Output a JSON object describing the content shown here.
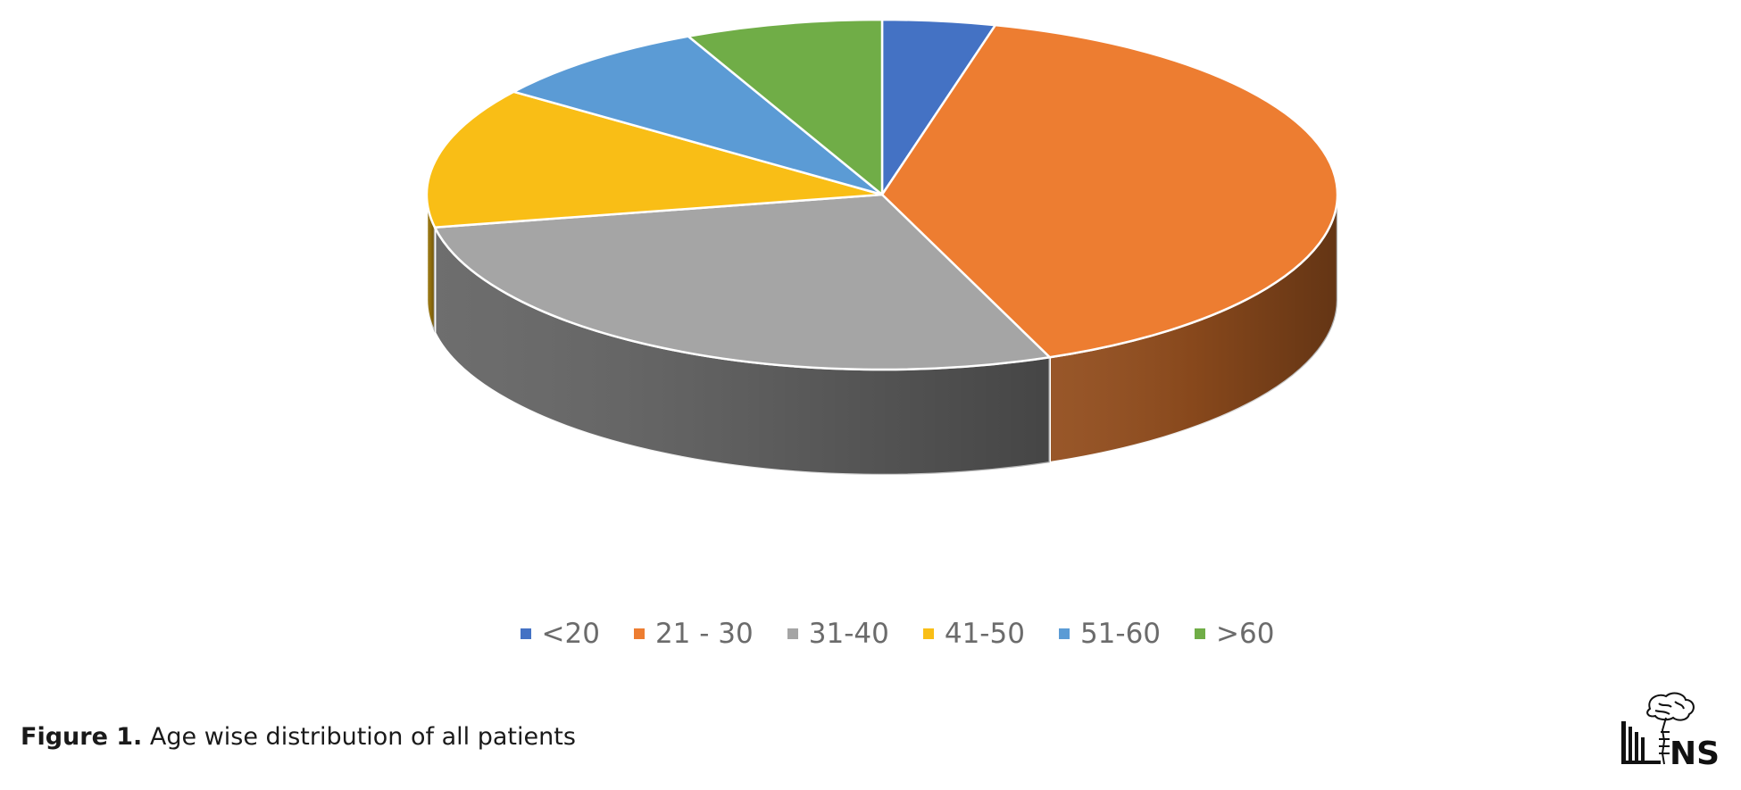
{
  "chart_data": {
    "type": "pie",
    "style": "3d",
    "categories": [
      "<20",
      "21 - 30",
      "31-40",
      "41-50",
      "51-60",
      ">60"
    ],
    "values": [
      4,
      40,
      28,
      13,
      8,
      7
    ],
    "unit": "%",
    "colors": [
      "#4472c4",
      "#ed7d31",
      "#a5a5a5",
      "#f9be16",
      "#5b9bd5",
      "#70ad47"
    ],
    "start_angle_deg": 90,
    "direction": "clockwise",
    "legend_position": "bottom"
  },
  "caption": {
    "label": "Figure 1.",
    "text": " Age wise distribution of all patients"
  },
  "logo": {
    "icon": "brain-spine-logo",
    "text": "NS"
  }
}
